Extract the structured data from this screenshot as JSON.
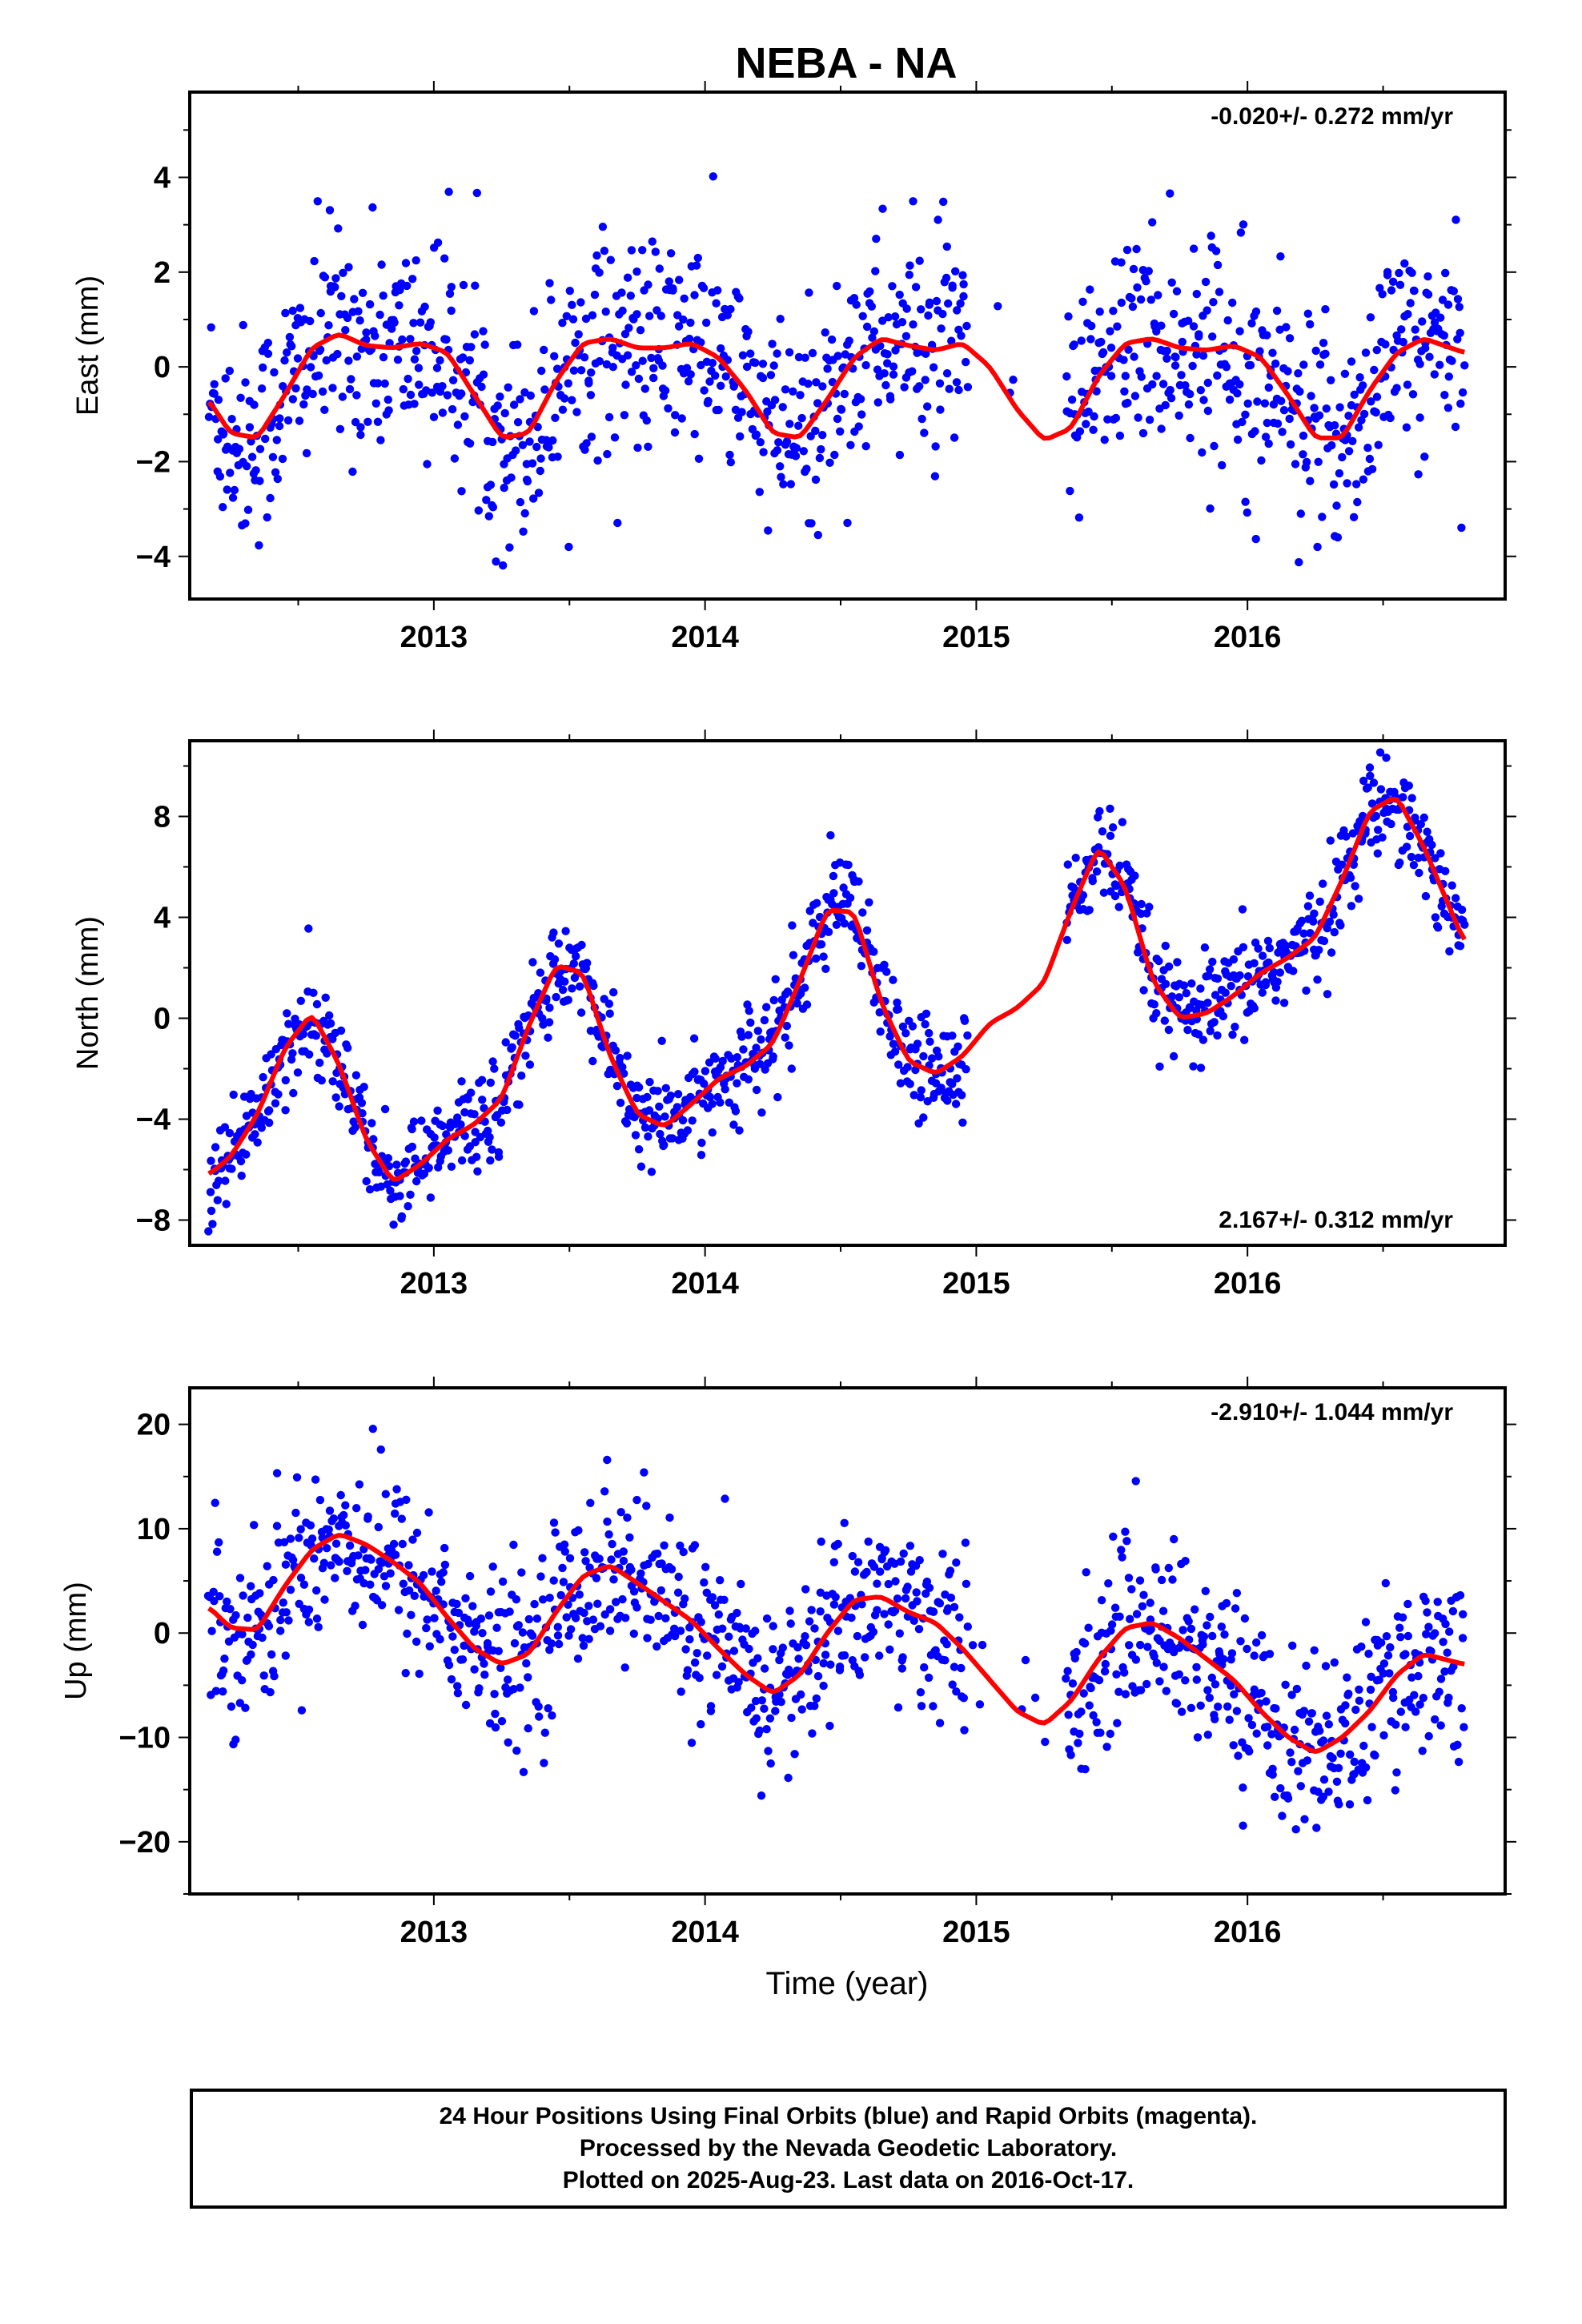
{
  "title": "NEBA - NA",
  "xlabel": "Time (year)",
  "colors": {
    "points": "#0000ff",
    "fit": "#ff0000",
    "axes": "#000000"
  },
  "caption": {
    "line1": "24 Hour Positions Using Final Orbits (blue) and Rapid Orbits (magenta).",
    "line2": "Processed by the Nevada Geodetic Laboratory.",
    "line3": "Plotted on 2025-Aug-23. Last data on 2016-Oct-17."
  },
  "chart_data": [
    {
      "type": "scatter",
      "ylabel": "East (mm)",
      "rate_label": "-0.020+/- 0.272 mm/yr",
      "rate_position": "top-right",
      "xlim": [
        2012.1,
        2016.95
      ],
      "ylim": [
        -4.9,
        5.8
      ],
      "xticks": [
        2013,
        2014,
        2015,
        2016
      ],
      "xtick_labels": [
        "2013",
        "2014",
        "2015",
        "2016"
      ],
      "yticks": [
        -4,
        -2,
        0,
        2,
        4
      ],
      "ytick_labels": [
        "−4",
        "−2",
        "0",
        "2",
        "4"
      ],
      "data_range": [
        2012.17,
        2016.8
      ],
      "gap": [
        2014.97,
        2015.33
      ],
      "scatter_sd": 1.15,
      "fit": {
        "x": [
          2012.17,
          2012.25,
          2012.35,
          2012.45,
          2012.55,
          2012.65,
          2012.75,
          2012.85,
          2012.95,
          2013.05,
          2013.15,
          2013.25,
          2013.35,
          2013.45,
          2013.55,
          2013.65,
          2013.75,
          2013.85,
          2013.95,
          2014.05,
          2014.15,
          2014.25,
          2014.35,
          2014.45,
          2014.55,
          2014.65,
          2014.75,
          2014.85,
          2014.95,
          2015.05,
          2015.15,
          2015.25,
          2015.35,
          2015.45,
          2015.55,
          2015.65,
          2015.75,
          2015.85,
          2015.95,
          2016.05,
          2016.15,
          2016.25,
          2016.35,
          2016.45,
          2016.55,
          2016.65,
          2016.8
        ],
        "y": [
          -0.7,
          -1.4,
          -1.5,
          -0.6,
          0.4,
          0.7,
          0.45,
          0.4,
          0.5,
          0.3,
          -0.6,
          -1.5,
          -1.4,
          -0.3,
          0.5,
          0.6,
          0.4,
          0.4,
          0.5,
          0.2,
          -0.5,
          -1.4,
          -1.5,
          -0.7,
          0.2,
          0.6,
          0.45,
          0.35,
          0.5,
          0.0,
          -0.9,
          -1.55,
          -1.3,
          -0.2,
          0.5,
          0.6,
          0.4,
          0.35,
          0.45,
          0.2,
          -0.6,
          -1.5,
          -1.5,
          -0.5,
          0.3,
          0.6,
          0.3
        ]
      }
    },
    {
      "type": "scatter",
      "ylabel": "North (mm)",
      "rate_label": "2.167+/- 0.312 mm/yr",
      "rate_position": "bottom-right",
      "xlim": [
        2012.1,
        2016.95
      ],
      "ylim": [
        -9.0,
        11.0
      ],
      "xticks": [
        2013,
        2014,
        2015,
        2016
      ],
      "xtick_labels": [
        "2013",
        "2014",
        "2015",
        "2016"
      ],
      "yticks": [
        -8,
        -4,
        0,
        4,
        8
      ],
      "ytick_labels": [
        "−8",
        "−4",
        "0",
        "4",
        "8"
      ],
      "data_range": [
        2012.17,
        2016.8
      ],
      "gap": [
        2014.97,
        2015.33
      ],
      "scatter_sd": 1.0,
      "fit": {
        "x": [
          2012.17,
          2012.25,
          2012.35,
          2012.45,
          2012.55,
          2012.65,
          2012.75,
          2012.85,
          2012.95,
          2013.05,
          2013.15,
          2013.25,
          2013.35,
          2013.45,
          2013.55,
          2013.65,
          2013.75,
          2013.85,
          2013.95,
          2014.05,
          2014.15,
          2014.25,
          2014.35,
          2014.45,
          2014.55,
          2014.65,
          2014.75,
          2014.85,
          2014.95,
          2015.05,
          2015.15,
          2015.25,
          2015.35,
          2015.45,
          2015.55,
          2015.65,
          2015.75,
          2015.85,
          2015.95,
          2016.05,
          2016.15,
          2016.25,
          2016.35,
          2016.45,
          2016.55,
          2016.65,
          2016.8
        ],
        "y": [
          -6.2,
          -5.5,
          -3.8,
          -1.2,
          0.2,
          -1.8,
          -4.8,
          -6.5,
          -5.8,
          -4.8,
          -4.2,
          -3.2,
          -0.3,
          2.1,
          1.8,
          -1.5,
          -3.8,
          -4.3,
          -3.4,
          -2.4,
          -1.9,
          -1.0,
          1.5,
          4.3,
          4.2,
          0.6,
          -1.7,
          -2.2,
          -1.5,
          -0.2,
          0.4,
          1.4,
          4.3,
          6.8,
          5.2,
          1.5,
          0.0,
          0.2,
          0.9,
          1.8,
          2.4,
          3.2,
          5.5,
          8.2,
          8.8,
          6.8,
          3.0
        ]
      }
    },
    {
      "type": "scatter",
      "ylabel": "Up (mm)",
      "rate_label": "-2.910+/- 1.044 mm/yr",
      "rate_position": "top-right",
      "xlim": [
        2012.1,
        2016.95
      ],
      "ylim": [
        -25.0,
        23.5
      ],
      "xticks": [
        2013,
        2014,
        2015,
        2016
      ],
      "xtick_labels": [
        "2013",
        "2014",
        "2015",
        "2016"
      ],
      "yticks": [
        -20,
        -10,
        0,
        10,
        20
      ],
      "ytick_labels": [
        "−20",
        "−10",
        "0",
        "10",
        "20"
      ],
      "data_range": [
        2012.17,
        2016.8
      ],
      "gap": [
        2014.97,
        2015.33
      ],
      "scatter_sd": 4.2,
      "fit": {
        "x": [
          2012.17,
          2012.25,
          2012.35,
          2012.45,
          2012.55,
          2012.65,
          2012.75,
          2012.85,
          2012.95,
          2013.05,
          2013.15,
          2013.25,
          2013.35,
          2013.45,
          2013.55,
          2013.65,
          2013.75,
          2013.85,
          2013.95,
          2014.05,
          2014.15,
          2014.25,
          2014.35,
          2014.45,
          2014.55,
          2014.65,
          2014.75,
          2014.85,
          2014.95,
          2015.05,
          2015.15,
          2015.25,
          2015.35,
          2015.45,
          2015.55,
          2015.65,
          2015.75,
          2015.85,
          2015.95,
          2016.05,
          2016.15,
          2016.25,
          2016.35,
          2016.45,
          2016.55,
          2016.65,
          2016.8
        ],
        "y": [
          2.5,
          0.5,
          0.3,
          4.5,
          8.0,
          9.5,
          8.5,
          6.8,
          4.8,
          1.5,
          -1.5,
          -3.0,
          -2.0,
          2.0,
          5.5,
          6.5,
          4.8,
          3.0,
          1.2,
          -1.5,
          -4.0,
          -5.8,
          -4.0,
          0.0,
          3.2,
          3.5,
          2.0,
          1.0,
          -1.5,
          -4.5,
          -7.5,
          -8.8,
          -6.5,
          -2.5,
          0.5,
          1.0,
          -0.5,
          -2.5,
          -4.5,
          -7.5,
          -10.0,
          -11.5,
          -10.0,
          -7.5,
          -4.0,
          -2.0,
          -3.0
        ]
      }
    }
  ]
}
